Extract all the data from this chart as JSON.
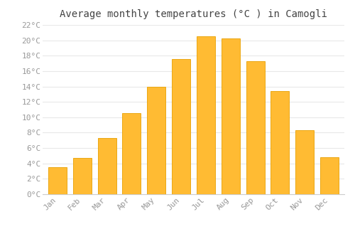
{
  "title": "Average monthly temperatures (°C ) in Camogli",
  "months": [
    "Jan",
    "Feb",
    "Mar",
    "Apr",
    "May",
    "Jun",
    "Jul",
    "Aug",
    "Sep",
    "Oct",
    "Nov",
    "Dec"
  ],
  "values": [
    3.5,
    4.7,
    7.3,
    10.5,
    14.0,
    17.6,
    20.5,
    20.2,
    17.3,
    13.4,
    8.3,
    4.8
  ],
  "bar_color": "#FFBB33",
  "bar_edge_color": "#E8A000",
  "background_color": "#FFFFFF",
  "grid_color": "#E8E8E8",
  "text_color": "#999999",
  "title_color": "#444444",
  "ylim": [
    0,
    22
  ],
  "ytick_step": 2,
  "title_fontsize": 10,
  "tick_fontsize": 8,
  "font_family": "monospace"
}
